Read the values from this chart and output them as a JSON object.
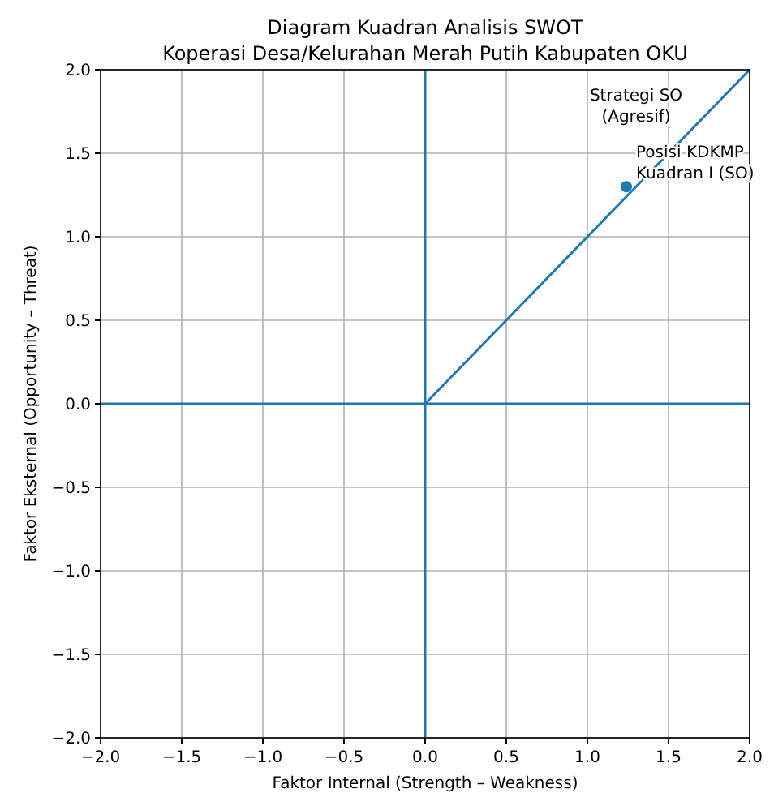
{
  "chart_data": {
    "type": "line",
    "title": "Diagram Kuadran Analisis SWOT\nKoperasi Desa/Kelurahan Merah Putih Kabupaten OKU",
    "xlabel": "Faktor Internal (Strength – Weakness)",
    "ylabel": "Faktor Eksternal (Opportunity – Threat)",
    "xlim": [
      -2,
      2
    ],
    "ylim": [
      -2,
      2
    ],
    "xticks": [
      {
        "value": -2,
        "label": "−2.0"
      },
      {
        "value": -1.5,
        "label": "−1.5"
      },
      {
        "value": -1,
        "label": "−1.0"
      },
      {
        "value": -0.5,
        "label": "−0.5"
      },
      {
        "value": 0,
        "label": "0.0"
      },
      0.5,
      {
        "value": 1,
        "label": "1.0"
      },
      1.5,
      {
        "value": 2,
        "label": "2.0"
      }
    ],
    "yticks": [
      {
        "value": -2,
        "label": "−2.0"
      },
      {
        "value": -1.5,
        "label": "−1.5"
      },
      {
        "value": -1,
        "label": "−1.0"
      },
      {
        "value": -0.5,
        "label": "−0.5"
      },
      {
        "value": 0,
        "label": "0.0"
      },
      0.5,
      {
        "value": 1,
        "label": "1.0"
      },
      1.5,
      {
        "value": 2,
        "label": "2.0"
      }
    ],
    "grid": true,
    "series": [
      {
        "color": "#1f77b4",
        "x": [
          -2,
          2
        ],
        "values": [
          0,
          0
        ]
      },
      {
        "color": "#1f77b4",
        "x": [
          0,
          0
        ],
        "values": [
          -2,
          2
        ]
      },
      {
        "type": "line",
        "color": "#1f77b4",
        "x": [
          0,
          2
        ],
        "values": [
          0,
          2
        ]
      },
      {
        "type": "scatter",
        "color": "#1f77b4",
        "marker": "circle",
        "x": [
          1.24
        ],
        "values": [
          1.3
        ]
      }
    ],
    "annotations": [
      "Strategi SO\n(Agresif)",
      {
        "text": "Posisi KDKMP\nKuadran I (SO)",
        "x": 1.24,
        "y": 1.3
      }
    ]
  }
}
